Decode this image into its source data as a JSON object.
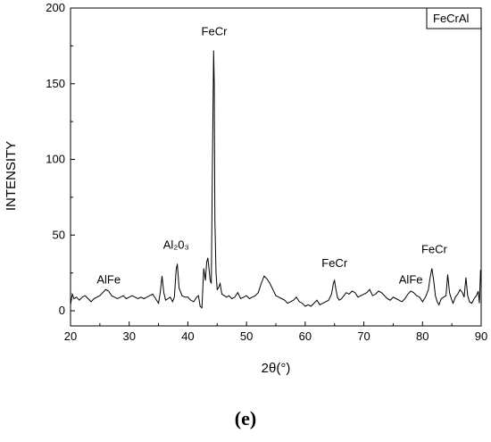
{
  "chart_data": {
    "type": "line",
    "title": "",
    "xlabel": "2θ(°)",
    "ylabel": "INTENSITY",
    "xlim": [
      20,
      90
    ],
    "ylim": [
      -10,
      200
    ],
    "xticks": [
      20,
      30,
      40,
      50,
      60,
      70,
      80,
      90
    ],
    "yticks": [
      0,
      50,
      100,
      150,
      200
    ],
    "grid": false,
    "legend": {
      "placement": "top-right",
      "entries": [
        "FeCrAl"
      ]
    },
    "panel_label": "(e)",
    "series": [
      {
        "name": "FeCrAl",
        "x": [
          20.0,
          20.3,
          20.6,
          21.0,
          21.5,
          22.0,
          22.5,
          23.0,
          23.5,
          24.0,
          24.5,
          25.0,
          25.5,
          26.0,
          26.5,
          27.0,
          27.5,
          28.0,
          28.5,
          29.0,
          29.5,
          30.0,
          30.5,
          31.0,
          31.5,
          32.0,
          32.5,
          33.0,
          33.5,
          34.0,
          34.5,
          35.0,
          35.3,
          35.6,
          35.9,
          36.2,
          36.6,
          37.0,
          37.4,
          37.7,
          38.0,
          38.2,
          38.5,
          39.0,
          39.5,
          40.0,
          40.5,
          41.0,
          41.5,
          41.8,
          42.1,
          42.4,
          42.7,
          43.0,
          43.2,
          43.4,
          43.6,
          43.8,
          44.0,
          44.2,
          44.4,
          44.5,
          44.6,
          44.8,
          45.0,
          45.2,
          45.5,
          45.8,
          46.2,
          46.6,
          47.0,
          47.5,
          48.0,
          48.5,
          49.0,
          49.5,
          50.0,
          50.5,
          51.0,
          51.5,
          52.0,
          52.5,
          53.0,
          53.5,
          54.0,
          54.5,
          55.0,
          55.5,
          56.0,
          56.5,
          57.0,
          57.5,
          58.0,
          58.5,
          59.0,
          59.5,
          60.0,
          60.5,
          61.0,
          61.5,
          62.0,
          62.5,
          63.0,
          63.5,
          64.0,
          64.5,
          64.8,
          65.0,
          65.2,
          65.5,
          65.8,
          66.2,
          66.6,
          67.0,
          67.5,
          68.0,
          68.5,
          69.0,
          69.5,
          70.0,
          70.5,
          71.0,
          71.5,
          72.0,
          72.5,
          73.0,
          73.5,
          74.0,
          74.5,
          75.0,
          75.5,
          76.0,
          76.5,
          77.0,
          77.5,
          78.0,
          78.5,
          79.0,
          79.5,
          80.0,
          80.5,
          81.0,
          81.3,
          81.6,
          81.9,
          82.2,
          82.5,
          82.8,
          83.2,
          83.6,
          84.0,
          84.3,
          84.6,
          84.9,
          85.2,
          85.6,
          86.0,
          86.4,
          86.8,
          87.1,
          87.4,
          87.7,
          88.0,
          88.4,
          88.8,
          89.2,
          89.5,
          89.7,
          89.9,
          90.0
        ],
        "y": [
          4,
          11,
          8,
          9,
          7,
          9,
          10,
          8,
          6,
          8,
          9,
          10,
          12,
          14,
          13,
          10,
          9,
          8,
          9,
          10,
          8,
          9,
          10,
          9,
          8,
          9,
          8,
          9,
          10,
          11,
          8,
          5,
          12,
          23,
          12,
          7,
          8,
          9,
          6,
          9,
          27,
          31,
          15,
          10,
          9,
          9,
          7,
          6,
          9,
          10,
          3,
          2,
          28,
          20,
          32,
          35,
          28,
          20,
          18,
          100,
          172,
          150,
          60,
          25,
          14,
          15,
          18,
          11,
          10,
          9,
          10,
          8,
          9,
          12,
          8,
          9,
          10,
          8,
          9,
          10,
          12,
          18,
          23,
          21,
          18,
          14,
          10,
          9,
          8,
          7,
          5,
          6,
          7,
          9,
          6,
          5,
          3,
          4,
          3,
          5,
          7,
          4,
          5,
          6,
          7,
          11,
          18,
          20,
          15,
          9,
          7,
          8,
          10,
          12,
          11,
          13,
          12,
          9,
          10,
          11,
          12,
          14,
          10,
          11,
          13,
          12,
          10,
          8,
          7,
          9,
          8,
          7,
          6,
          8,
          11,
          13,
          12,
          10,
          9,
          6,
          9,
          14,
          22,
          28,
          20,
          10,
          6,
          4,
          8,
          9,
          10,
          24,
          12,
          8,
          5,
          9,
          11,
          14,
          12,
          9,
          22,
          10,
          6,
          5,
          8,
          10,
          13,
          5,
          27,
          20
        ]
      }
    ],
    "annotations": [
      {
        "text": "AlFe",
        "x": 26.5,
        "y": 18
      },
      {
        "text": "Al₂0₃",
        "x": 38.0,
        "y": 41
      },
      {
        "text": "FeCr",
        "x": 44.5,
        "y": 182
      },
      {
        "text": "FeCr",
        "x": 65.0,
        "y": 29
      },
      {
        "text": "AlFe",
        "x": 78.0,
        "y": 18
      },
      {
        "text": "FeCr",
        "x": 82.0,
        "y": 38
      }
    ]
  }
}
